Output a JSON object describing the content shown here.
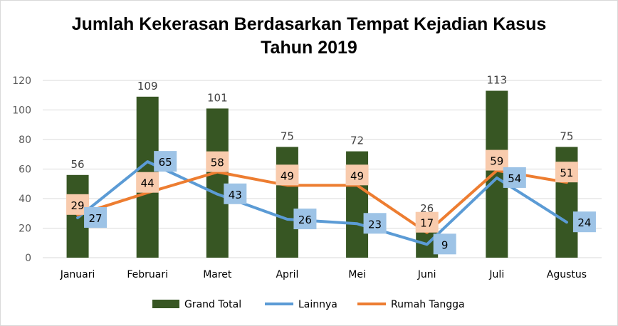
{
  "chart_data": {
    "type": "bar",
    "title_line1": "Jumlah Kekerasan Berdasarkan Tempat Kejadian Kasus",
    "title_line2": "Tahun 2019",
    "categories": [
      "Januari",
      "Februari",
      "Maret",
      "April",
      "Mei",
      "Juni",
      "Juli",
      "Agustus"
    ],
    "ylim": [
      0,
      120
    ],
    "yticks": [
      0,
      20,
      40,
      60,
      80,
      100,
      120
    ],
    "grid": true,
    "legend_position": "bottom",
    "series": [
      {
        "name": "Grand Total",
        "type": "bar",
        "color": "#375623",
        "values": [
          56,
          109,
          101,
          75,
          72,
          26,
          113,
          75
        ]
      },
      {
        "name": "Lainnya",
        "type": "line",
        "color": "#5b9bd5",
        "label_bg": "#9dc3e6",
        "values": [
          27,
          65,
          43,
          26,
          23,
          9,
          54,
          24
        ]
      },
      {
        "name": "Rumah Tangga",
        "type": "line",
        "color": "#ed7d31",
        "label_bg": "#f8cbad",
        "values": [
          29,
          44,
          58,
          49,
          49,
          17,
          59,
          51
        ]
      }
    ]
  }
}
